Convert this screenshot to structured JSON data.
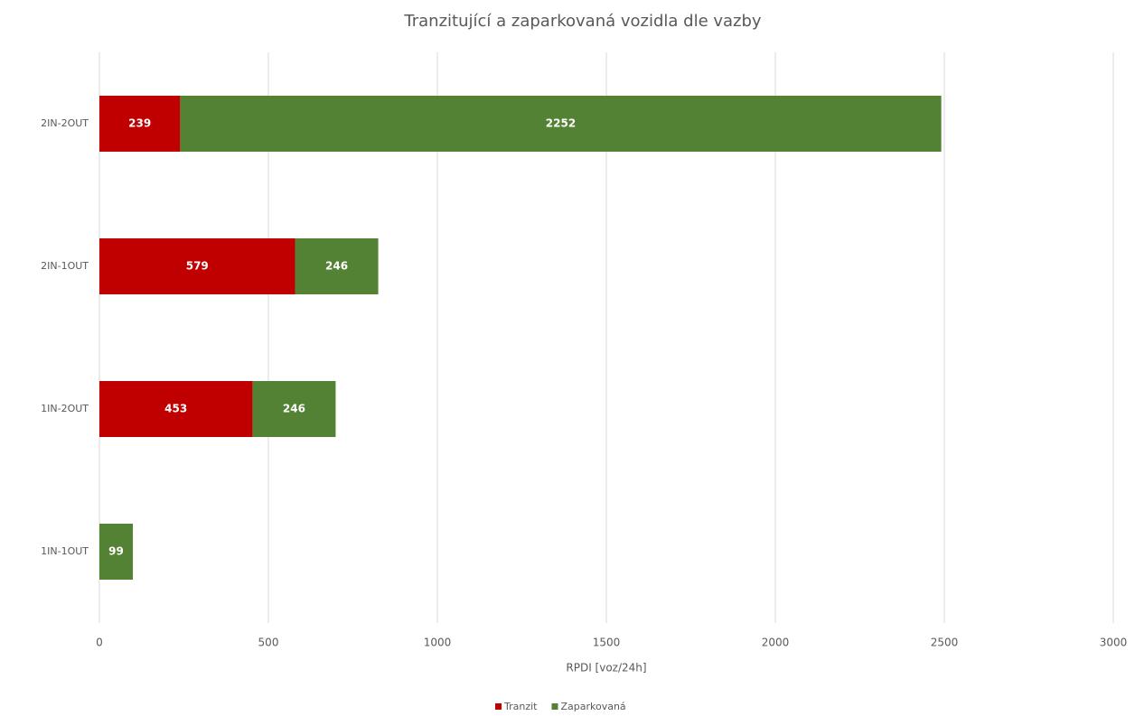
{
  "chart_data": {
    "type": "hbar_stacked",
    "title": "Tranzitující a zaparkovaná vozidla dle vazby",
    "categories": [
      "2IN-2OUT",
      "2IN-1OUT",
      "1IN-2OUT",
      "1IN-1OUT"
    ],
    "series": [
      {
        "name": "Tranzit",
        "color": "#c00000",
        "values": [
          239,
          579,
          453,
          null
        ]
      },
      {
        "name": "Zaparkovaná",
        "color": "#548235",
        "values": [
          2252,
          246,
          246,
          99
        ]
      }
    ],
    "x_label": "RPDI [voz/24h]",
    "xlim": [
      0,
      3000
    ],
    "xticks": [
      0,
      500,
      1000,
      1500,
      2000,
      2500,
      3000
    ],
    "grid": true,
    "legend": "bottom"
  }
}
